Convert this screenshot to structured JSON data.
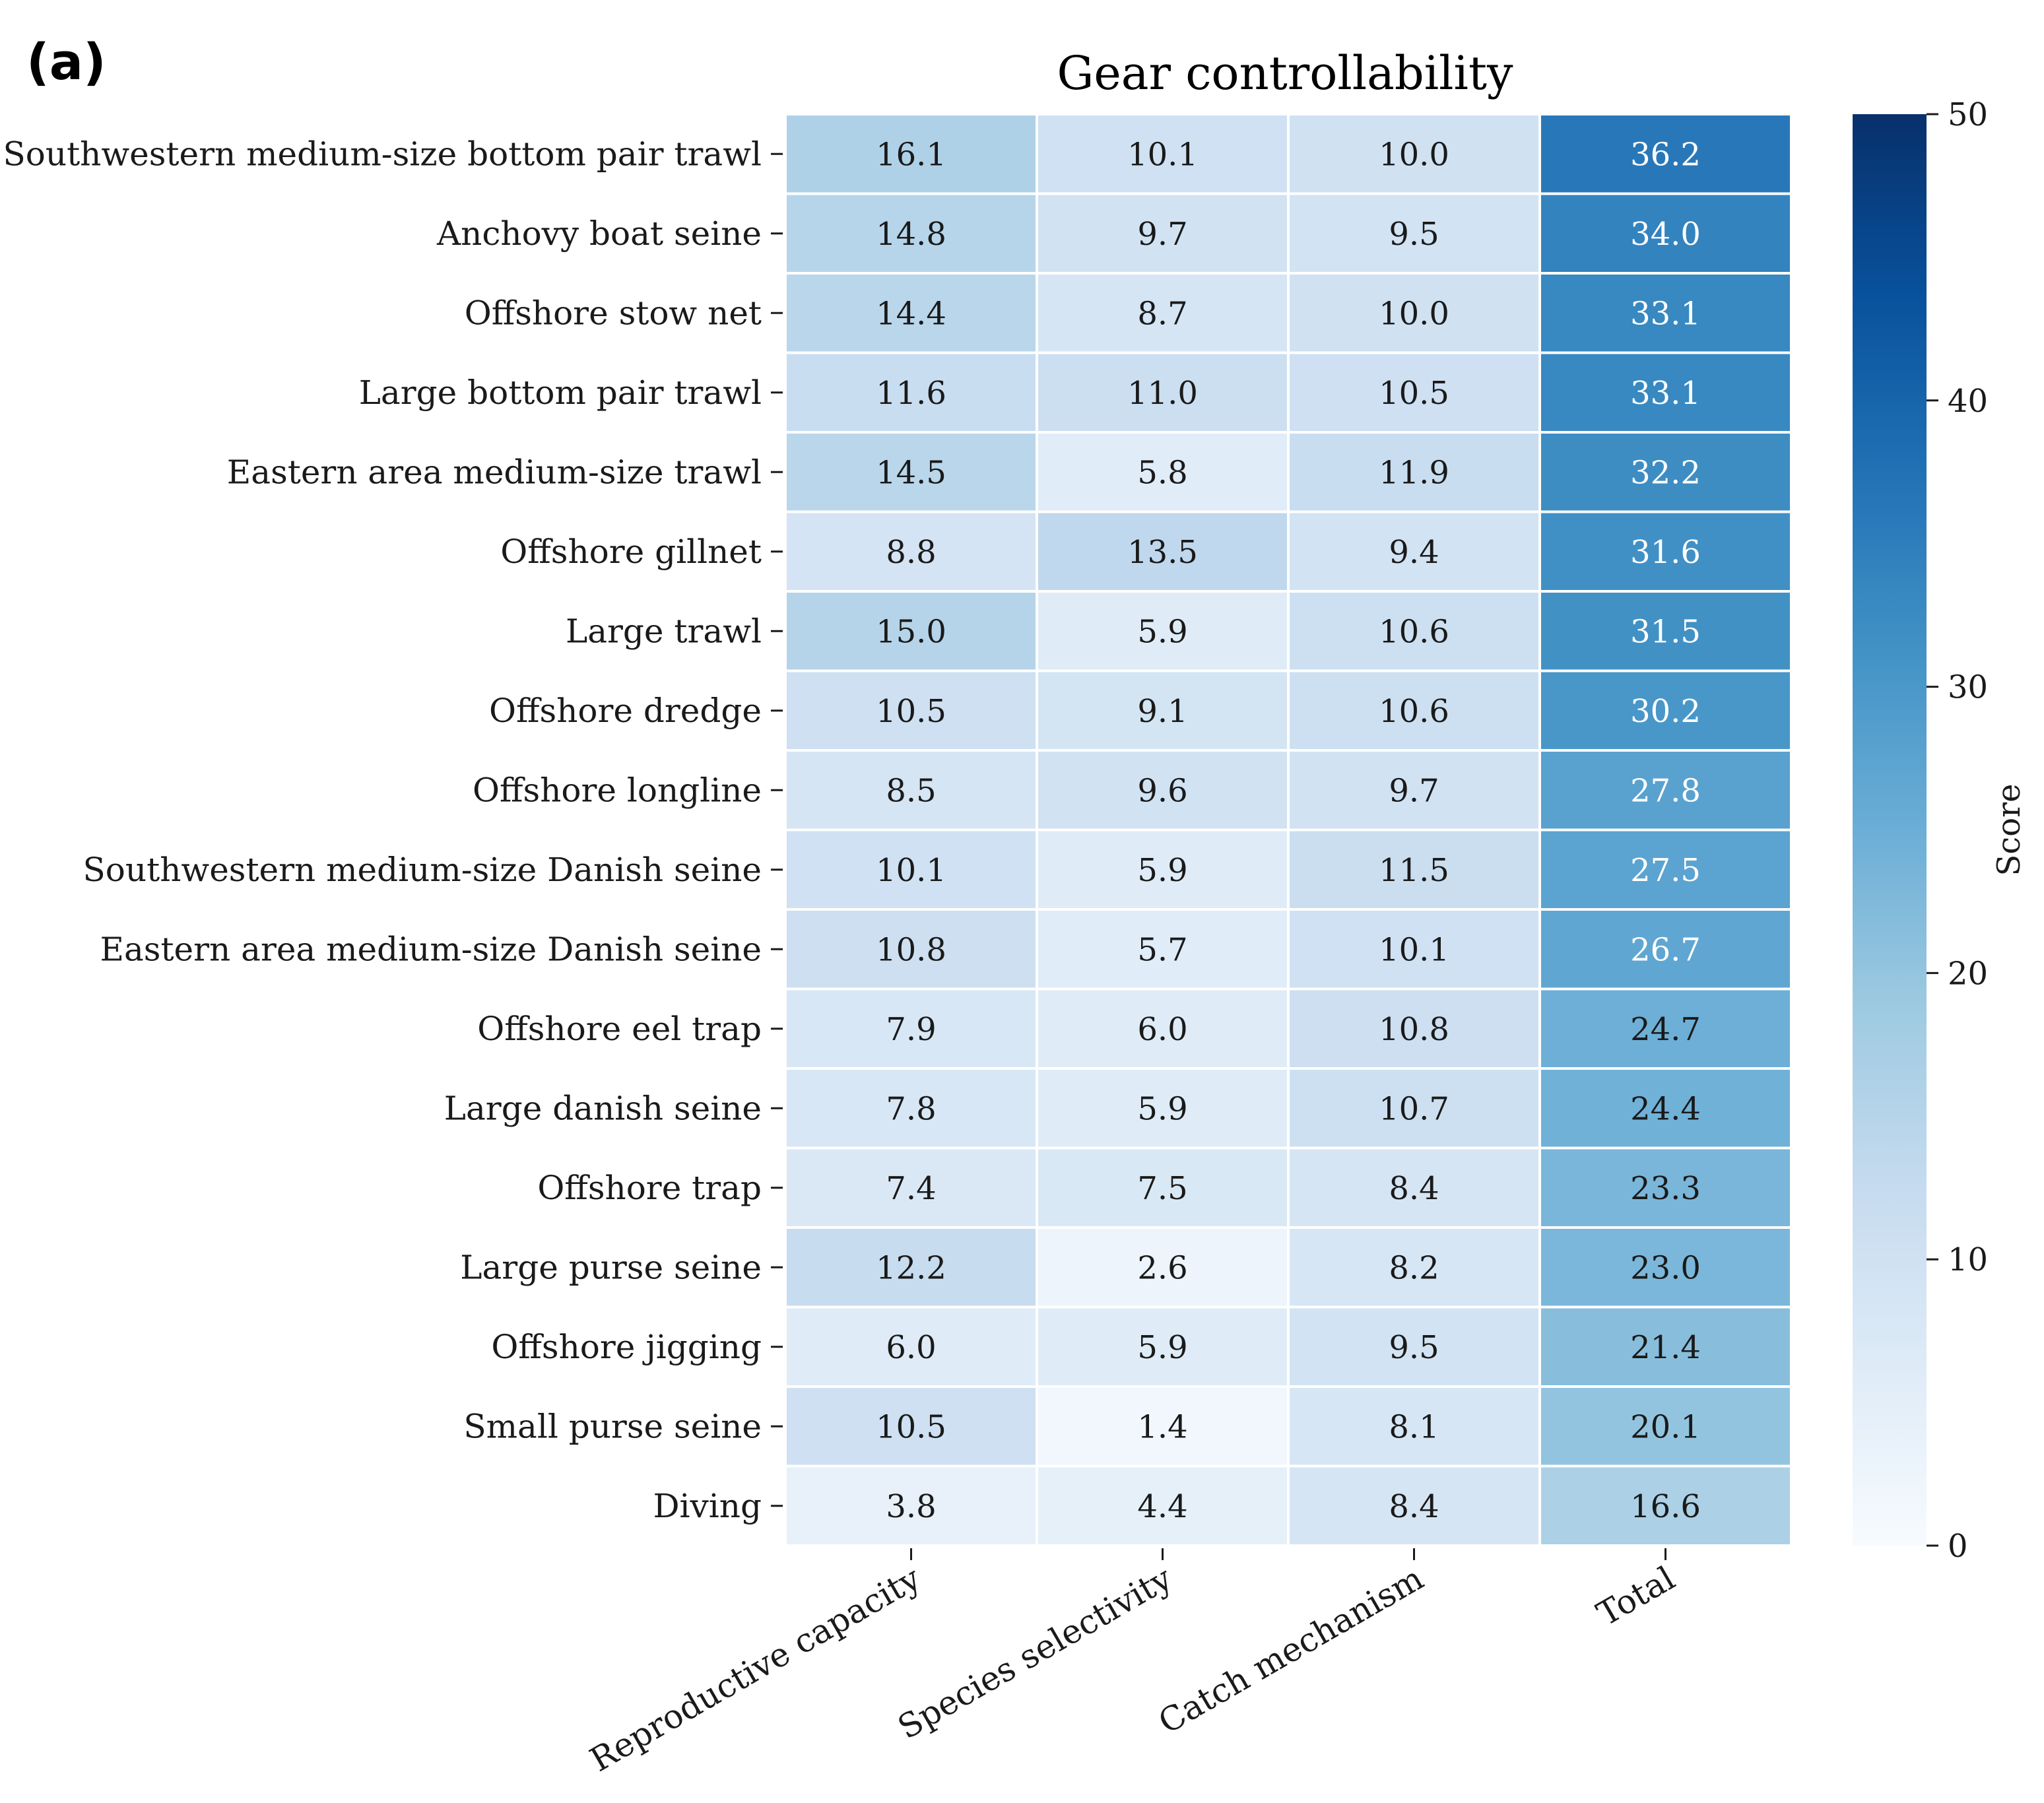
{
  "panel_label": "(a)",
  "chart_data": {
    "type": "heatmap",
    "title": "Gear controllability",
    "columns": [
      "Reproductive capacity",
      "Species selectivity",
      "Catch mechanism",
      "Total"
    ],
    "rows": [
      "Southwestern medium-size bottom pair trawl",
      "Anchovy boat seine",
      "Offshore stow net",
      "Large bottom pair trawl",
      "Eastern area medium-size trawl",
      "Offshore gillnet",
      "Large trawl",
      "Offshore dredge",
      "Offshore longline",
      "Southwestern medium-size Danish seine",
      "Eastern area medium-size Danish seine",
      "Offshore eel trap",
      "Large danish seine",
      "Offshore trap",
      "Large purse seine",
      "Offshore jigging",
      "Small purse seine",
      "Diving"
    ],
    "values": [
      [
        16.1,
        10.1,
        10.0,
        36.2
      ],
      [
        14.8,
        9.7,
        9.5,
        34.0
      ],
      [
        14.4,
        8.7,
        10.0,
        33.1
      ],
      [
        11.6,
        11.0,
        10.5,
        33.1
      ],
      [
        14.5,
        5.8,
        11.9,
        32.2
      ],
      [
        8.8,
        13.5,
        9.4,
        31.6
      ],
      [
        15.0,
        5.9,
        10.6,
        31.5
      ],
      [
        10.5,
        9.1,
        10.6,
        30.2
      ],
      [
        8.5,
        9.6,
        9.7,
        27.8
      ],
      [
        10.1,
        5.9,
        11.5,
        27.5
      ],
      [
        10.8,
        5.7,
        10.1,
        26.7
      ],
      [
        7.9,
        6.0,
        10.8,
        24.7
      ],
      [
        7.8,
        5.9,
        10.7,
        24.4
      ],
      [
        7.4,
        7.5,
        8.4,
        23.3
      ],
      [
        12.2,
        2.6,
        8.2,
        23.0
      ],
      [
        6.0,
        5.9,
        9.5,
        21.4
      ],
      [
        10.5,
        1.4,
        8.1,
        20.1
      ],
      [
        3.8,
        4.4,
        8.4,
        16.6
      ]
    ],
    "colorbar": {
      "label": "Score",
      "vmin": 0,
      "vmax": 50,
      "ticks": [
        0,
        10,
        20,
        30,
        40,
        50
      ],
      "colormap": "Blues",
      "stops": [
        "#f7fbff",
        "#deebf7",
        "#c6dbef",
        "#9ecae1",
        "#6baed6",
        "#4292c6",
        "#2171b5",
        "#08519c",
        "#08306b"
      ]
    },
    "text_colors": {
      "dark": "#1a1a1a",
      "light": "#ffffff"
    },
    "light_text_threshold": 25
  }
}
